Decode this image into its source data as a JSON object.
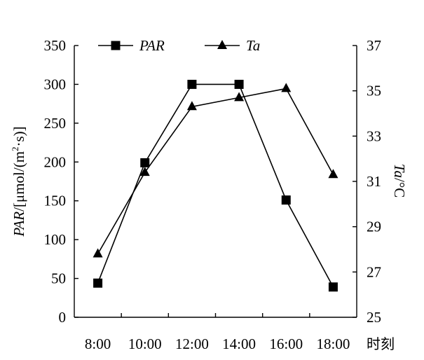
{
  "chart_data": {
    "type": "line",
    "categories": [
      "8:00",
      "10:00",
      "12:00",
      "14:00",
      "16:00",
      "18:00"
    ],
    "xlabel": "时刻",
    "left_axis": {
      "label_italic": "PAR",
      "label_rest": "/[μmol/(m",
      "label_sup": "2",
      "label_tail": "·s)]",
      "range": [
        0,
        350
      ],
      "ticks": [
        0,
        50,
        100,
        150,
        200,
        250,
        300,
        350
      ]
    },
    "right_axis": {
      "label_italic": "Ta",
      "label_rest": "/°C",
      "range": [
        25,
        37
      ],
      "ticks": [
        25,
        27,
        29,
        31,
        33,
        35,
        37
      ]
    },
    "series": [
      {
        "name": "PAR",
        "axis": "left",
        "marker": "square",
        "values": [
          44,
          199,
          300,
          300,
          151,
          39
        ]
      },
      {
        "name": "Ta",
        "axis": "right",
        "marker": "triangle",
        "values": [
          27.8,
          31.4,
          34.3,
          34.7,
          35.1,
          31.3
        ]
      }
    ],
    "legend": "top",
    "grid": false,
    "colors": {
      "line": "#000000",
      "marker": "#000000"
    }
  }
}
